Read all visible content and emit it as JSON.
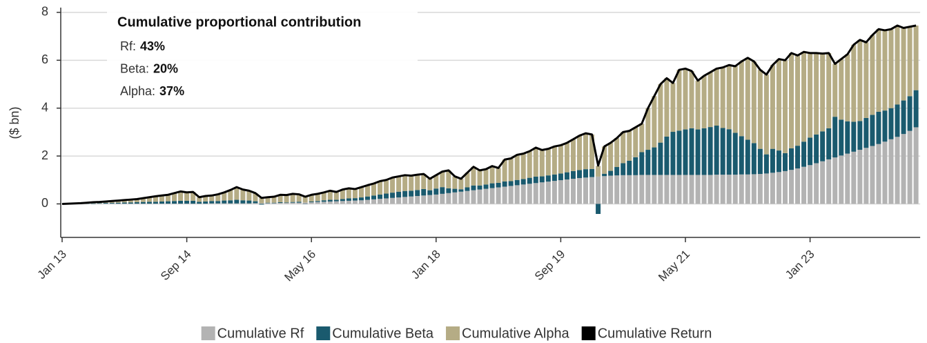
{
  "chart_data": {
    "type": "bar",
    "stacked": true,
    "y_label": "($ bn)",
    "ylim": [
      -1.4,
      8.2
    ],
    "yticks": [
      0,
      2,
      4,
      6,
      8
    ],
    "grid": true,
    "legend": "bottom",
    "annotation": {
      "title": "Cumulative proportional contribution",
      "items": [
        {
          "label": "Rf:",
          "value": "43%"
        },
        {
          "label": "Beta:",
          "value": "20%"
        },
        {
          "label": "Alpha:",
          "value": "37%"
        }
      ]
    },
    "categories": [
      "Jan 13",
      null,
      null,
      null,
      null,
      null,
      null,
      null,
      null,
      null,
      null,
      null,
      null,
      null,
      null,
      null,
      null,
      null,
      null,
      null,
      "Sep 14",
      null,
      null,
      null,
      null,
      null,
      null,
      null,
      null,
      null,
      null,
      null,
      null,
      null,
      null,
      null,
      null,
      null,
      null,
      null,
      "May 16",
      null,
      null,
      null,
      null,
      null,
      null,
      null,
      null,
      null,
      null,
      null,
      null,
      null,
      null,
      null,
      null,
      null,
      null,
      null,
      "Jan 18",
      null,
      null,
      null,
      null,
      null,
      null,
      null,
      null,
      null,
      null,
      null,
      null,
      null,
      null,
      null,
      null,
      null,
      null,
      null,
      "Sep 19",
      null,
      null,
      null,
      null,
      null,
      null,
      null,
      null,
      null,
      null,
      null,
      null,
      null,
      null,
      null,
      null,
      null,
      null,
      null,
      "May 21",
      null,
      null,
      null,
      null,
      null,
      null,
      null,
      null,
      null,
      null,
      null,
      null,
      null,
      null,
      null,
      null,
      null,
      null,
      null,
      "Jan 23",
      null,
      null,
      null,
      null,
      null,
      null,
      null,
      null,
      null,
      null,
      null,
      null,
      null,
      null,
      null,
      null,
      null
    ],
    "series": [
      {
        "name": "Cumulative Rf",
        "color": "#b3b3b3",
        "type": "bar",
        "values": [
          0,
          0,
          0,
          0,
          0,
          0,
          0.01,
          0.01,
          0.01,
          0.01,
          0.01,
          0.01,
          0.01,
          0.01,
          0.01,
          0.01,
          0.01,
          0.01,
          0.01,
          0.01,
          0.01,
          0.01,
          0.01,
          0.01,
          0.02,
          0.02,
          0.02,
          0.02,
          0.02,
          0.02,
          0.02,
          0.03,
          0.03,
          0.03,
          0.03,
          0.04,
          0.04,
          0.05,
          0.05,
          0.06,
          0.07,
          0.08,
          0.09,
          0.1,
          0.11,
          0.12,
          0.13,
          0.14,
          0.15,
          0.17,
          0.19,
          0.21,
          0.23,
          0.25,
          0.27,
          0.29,
          0.31,
          0.33,
          0.35,
          0.37,
          0.39,
          0.42,
          0.45,
          0.48,
          0.51,
          0.54,
          0.57,
          0.6,
          0.63,
          0.66,
          0.69,
          0.72,
          0.75,
          0.78,
          0.81,
          0.84,
          0.87,
          0.9,
          0.93,
          0.96,
          0.99,
          1.02,
          1.05,
          1.08,
          1.1,
          1.12,
          1.14,
          1.16,
          1.18,
          1.19,
          1.2,
          1.2,
          1.2,
          1.21,
          1.21,
          1.21,
          1.21,
          1.21,
          1.21,
          1.21,
          1.21,
          1.21,
          1.21,
          1.21,
          1.21,
          1.22,
          1.22,
          1.22,
          1.22,
          1.23,
          1.23,
          1.24,
          1.25,
          1.27,
          1.3,
          1.33,
          1.37,
          1.42,
          1.48,
          1.55,
          1.62,
          1.7,
          1.78,
          1.86,
          1.94,
          2.02,
          2.1,
          2.18,
          2.26,
          2.34,
          2.42,
          2.5,
          2.6,
          2.7,
          2.8,
          2.92,
          3.05,
          3.2
        ]
      },
      {
        "name": "Cumulative Beta",
        "color": "#1a5a6e",
        "type": "bar",
        "values": [
          0,
          0,
          0,
          0,
          0.01,
          0.02,
          0.02,
          0.03,
          0.03,
          0.04,
          0.05,
          0.05,
          0.06,
          0.07,
          0.08,
          0.08,
          0.09,
          0.1,
          0.11,
          0.12,
          0.12,
          0.12,
          0.08,
          0.09,
          0.1,
          0.1,
          0.12,
          0.13,
          0.15,
          0.13,
          0.12,
          0.08,
          -0.03,
          0.02,
          0.02,
          0.03,
          0.02,
          0.03,
          0.04,
          -0.01,
          0.03,
          0.04,
          0.06,
          0.07,
          0.06,
          0.08,
          0.1,
          0.1,
          0.12,
          0.14,
          0.16,
          0.18,
          0.2,
          0.22,
          0.24,
          0.25,
          0.24,
          0.25,
          0.27,
          0.2,
          0.25,
          0.28,
          0.2,
          0.15,
          0.1,
          0.15,
          0.2,
          0.17,
          0.18,
          0.2,
          0.19,
          0.22,
          0.2,
          0.22,
          0.23,
          0.25,
          0.27,
          0.25,
          0.26,
          0.27,
          0.28,
          0.3,
          0.32,
          0.33,
          0.35,
          0.34,
          -0.42,
          0.1,
          0.2,
          0.35,
          0.5,
          0.6,
          0.75,
          0.95,
          1.05,
          1.15,
          1.35,
          1.6,
          1.8,
          1.85,
          1.9,
          1.95,
          1.9,
          1.95,
          2.0,
          2.05,
          1.95,
          1.9,
          1.75,
          1.6,
          1.45,
          1.3,
          1.05,
          0.8,
          1.0,
          0.9,
          0.75,
          0.9,
          0.95,
          1.05,
          1.15,
          1.2,
          1.25,
          1.3,
          1.7,
          1.5,
          1.35,
          1.25,
          1.2,
          1.25,
          1.3,
          1.35,
          1.3,
          1.3,
          1.35,
          1.4,
          1.45,
          1.55
        ]
      },
      {
        "name": "Cumulative Alpha",
        "color": "#b5ac85",
        "type": "bar",
        "values": [
          0,
          0.01,
          0.02,
          0.03,
          0.04,
          0.05,
          0.05,
          0.06,
          0.08,
          0.09,
          0.1,
          0.12,
          0.13,
          0.16,
          0.19,
          0.23,
          0.25,
          0.27,
          0.33,
          0.39,
          0.35,
          0.37,
          0.19,
          0.23,
          0.23,
          0.28,
          0.34,
          0.43,
          0.53,
          0.45,
          0.41,
          0.34,
          0.22,
          0.23,
          0.25,
          0.31,
          0.31,
          0.34,
          0.31,
          0.24,
          0.28,
          0.3,
          0.33,
          0.38,
          0.33,
          0.4,
          0.42,
          0.38,
          0.43,
          0.47,
          0.5,
          0.56,
          0.57,
          0.63,
          0.64,
          0.66,
          0.63,
          0.64,
          0.63,
          0.48,
          0.56,
          0.65,
          0.75,
          0.52,
          0.44,
          0.61,
          0.78,
          0.63,
          0.64,
          0.72,
          0.62,
          0.91,
          0.95,
          1.05,
          1.06,
          1.11,
          1.21,
          1.1,
          1.11,
          1.17,
          1.18,
          1.23,
          1.33,
          1.44,
          1.5,
          1.44,
          0.45,
          1.14,
          1.17,
          1.21,
          1.3,
          1.25,
          1.25,
          1.19,
          1.74,
          2.14,
          2.44,
          2.44,
          2.04,
          2.54,
          2.54,
          2.39,
          2.04,
          2.19,
          2.29,
          2.38,
          2.53,
          2.68,
          2.78,
          3.12,
          3.42,
          3.41,
          3.3,
          3.33,
          3.5,
          3.82,
          3.88,
          3.98,
          3.77,
          3.75,
          3.53,
          3.4,
          3.25,
          3.14,
          2.21,
          2.53,
          2.8,
          3.22,
          3.39,
          3.16,
          3.33,
          3.45,
          3.35,
          3.3,
          3.3,
          3.03,
          2.9,
          2.7
        ]
      },
      {
        "name": "Cumulative Return",
        "color": "#000000",
        "type": "line",
        "values": [
          0,
          0.01,
          0.02,
          0.03,
          0.05,
          0.07,
          0.08,
          0.1,
          0.12,
          0.14,
          0.16,
          0.18,
          0.2,
          0.24,
          0.28,
          0.32,
          0.35,
          0.38,
          0.45,
          0.52,
          0.48,
          0.5,
          0.28,
          0.33,
          0.35,
          0.4,
          0.48,
          0.58,
          0.7,
          0.6,
          0.55,
          0.45,
          0.25,
          0.28,
          0.3,
          0.38,
          0.37,
          0.42,
          0.4,
          0.3,
          0.38,
          0.42,
          0.48,
          0.55,
          0.5,
          0.6,
          0.65,
          0.62,
          0.7,
          0.78,
          0.85,
          0.95,
          1.0,
          1.1,
          1.15,
          1.2,
          1.18,
          1.22,
          1.25,
          1.05,
          1.2,
          1.35,
          1.4,
          1.15,
          1.05,
          1.3,
          1.55,
          1.4,
          1.45,
          1.58,
          1.5,
          1.85,
          1.9,
          2.05,
          2.1,
          2.2,
          2.35,
          2.25,
          2.3,
          2.4,
          2.45,
          2.55,
          2.7,
          2.85,
          2.95,
          2.9,
          1.6,
          2.4,
          2.55,
          2.75,
          3.0,
          3.05,
          3.2,
          3.35,
          4.0,
          4.5,
          5.0,
          5.25,
          5.05,
          5.6,
          5.65,
          5.55,
          5.15,
          5.35,
          5.5,
          5.65,
          5.7,
          5.8,
          5.75,
          5.95,
          6.1,
          5.95,
          5.6,
          5.4,
          5.8,
          6.05,
          6.0,
          6.3,
          6.2,
          6.35,
          6.3,
          6.3,
          6.28,
          6.3,
          5.85,
          6.05,
          6.25,
          6.65,
          6.85,
          6.75,
          7.05,
          7.3,
          7.25,
          7.3,
          7.45,
          7.35,
          7.4,
          7.45
        ]
      }
    ]
  }
}
